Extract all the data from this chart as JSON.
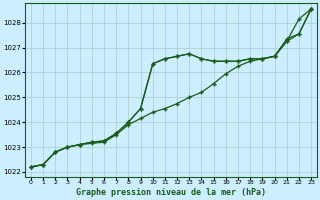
{
  "xlabel": "Graphe pression niveau de la mer (hPa)",
  "background_color": "#cceeff",
  "grid_color": "#aacccc",
  "line_color": "#1a5c1a",
  "x": [
    0,
    1,
    2,
    3,
    4,
    5,
    6,
    7,
    8,
    9,
    10,
    11,
    12,
    13,
    14,
    15,
    16,
    17,
    18,
    19,
    20,
    21,
    22,
    23
  ],
  "series1": [
    1022.2,
    1022.3,
    1022.8,
    1023.0,
    1023.1,
    1023.15,
    1023.2,
    1023.5,
    1023.9,
    1024.15,
    1024.4,
    1024.55,
    1024.75,
    1025.0,
    1025.2,
    1025.55,
    1025.95,
    1026.25,
    1026.45,
    1026.55,
    1026.65,
    1027.35,
    1027.55,
    1028.55
  ],
  "series2": [
    1022.2,
    1022.3,
    1022.8,
    1023.0,
    1023.1,
    1023.2,
    1023.25,
    1023.55,
    1024.0,
    1024.55,
    1026.35,
    1026.55,
    1026.65,
    1026.75,
    1026.55,
    1026.45,
    1026.45,
    1026.45,
    1026.55,
    1026.55,
    1026.65,
    1027.25,
    1028.15,
    1028.55
  ],
  "series3": [
    1022.2,
    1022.3,
    1022.8,
    1023.0,
    1023.1,
    1023.2,
    1023.25,
    1023.55,
    1024.0,
    1024.55,
    1026.35,
    1026.55,
    1026.65,
    1026.75,
    1026.55,
    1026.45,
    1026.45,
    1026.45,
    1026.55,
    1026.55,
    1026.65,
    1027.25,
    1027.55,
    1028.55
  ],
  "ylim": [
    1021.8,
    1028.8
  ],
  "yticks": [
    1022,
    1023,
    1024,
    1025,
    1026,
    1027,
    1028
  ],
  "xlim": [
    -0.5,
    23.5
  ],
  "xticks": [
    0,
    1,
    2,
    3,
    4,
    5,
    6,
    7,
    8,
    9,
    10,
    11,
    12,
    13,
    14,
    15,
    16,
    17,
    18,
    19,
    20,
    21,
    22,
    23
  ]
}
